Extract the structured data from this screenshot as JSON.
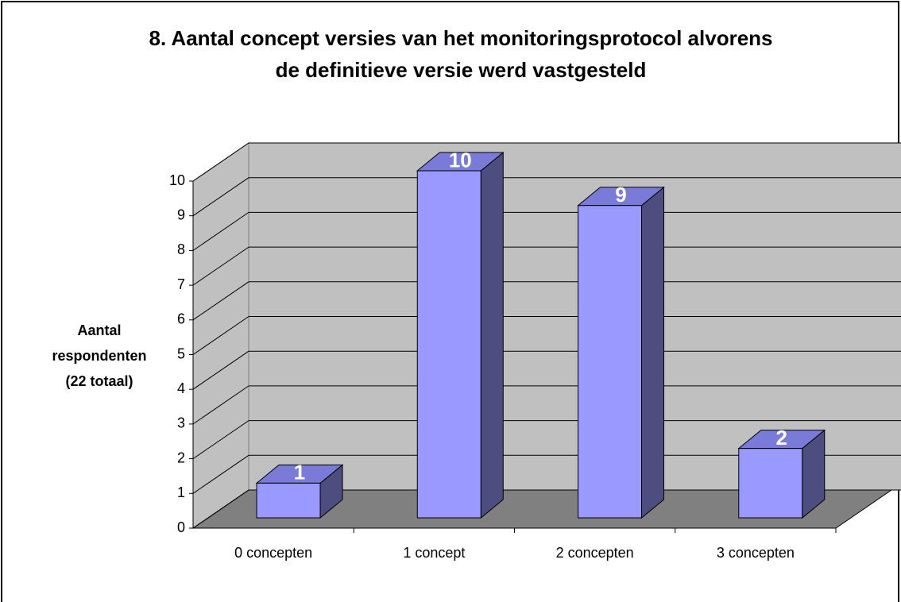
{
  "chart_data": {
    "type": "bar3d",
    "title": [
      "8. Aantal concept versies van het monitoringsprotocol alvorens",
      "de definitieve versie werd vastgesteld"
    ],
    "y_label": [
      "Aantal",
      "respondenten",
      "(22 totaal)"
    ],
    "categories": [
      "0 concepten",
      "1 concept",
      "2 concepten",
      "3 concepten"
    ],
    "values": [
      1,
      10,
      9,
      2
    ],
    "color": "#9999ff",
    "ylim": [
      0,
      10
    ],
    "yticks": [
      0,
      1,
      2,
      3,
      4,
      5,
      6,
      7,
      8,
      9,
      10
    ],
    "grid": true
  }
}
